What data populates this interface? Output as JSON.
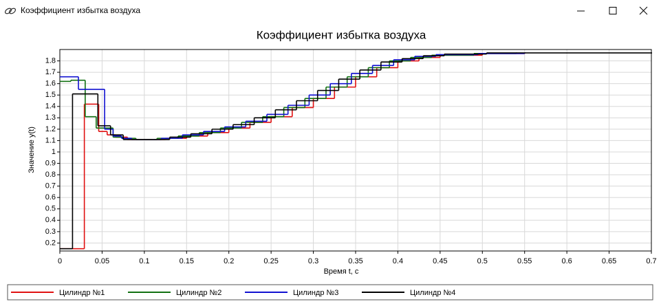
{
  "window": {
    "title": "Коэффициент избытка воздуха"
  },
  "chart_data": {
    "type": "step",
    "title": "Коэффициент избытка воздуха",
    "x_label": "Время t, с",
    "y_label": "Значение y(t)",
    "xlim": [
      0,
      0.7
    ],
    "xticks": [
      0,
      0.05,
      0.1,
      0.15,
      0.2,
      0.25,
      0.3,
      0.35,
      0.4,
      0.45,
      0.5,
      0.55,
      0.6,
      0.65,
      0.7
    ],
    "ylim": [
      0.13,
      1.9
    ],
    "yticks": [
      0.2,
      0.3,
      0.4,
      0.5,
      0.6,
      0.7,
      0.8,
      0.9,
      1,
      1.1,
      1.2,
      1.3,
      1.4,
      1.5,
      1.6,
      1.7,
      1.8
    ],
    "grid": true,
    "legend": "bottom",
    "series": [
      {
        "name": "Цилиндр №1",
        "color": "#e01010",
        "x": [
          0,
          0.029,
          0.046,
          0.056,
          0.066,
          0.08,
          0.1,
          0.125,
          0.15,
          0.175,
          0.2,
          0.225,
          0.25,
          0.275,
          0.3,
          0.325,
          0.35,
          0.375,
          0.4,
          0.425,
          0.45,
          0.5,
          0.55
        ],
        "values": [
          0.15,
          1.42,
          1.18,
          1.15,
          1.13,
          1.11,
          1.11,
          1.12,
          1.14,
          1.17,
          1.21,
          1.26,
          1.31,
          1.39,
          1.47,
          1.57,
          1.66,
          1.74,
          1.8,
          1.83,
          1.85,
          1.865,
          1.87
        ]
      },
      {
        "name": "Цилиндр №2",
        "color": "#107010",
        "x": [
          0,
          0.013,
          0.03,
          0.043,
          0.063,
          0.075,
          0.09,
          0.115,
          0.14,
          0.165,
          0.19,
          0.215,
          0.24,
          0.265,
          0.29,
          0.315,
          0.34,
          0.365,
          0.39,
          0.415,
          0.44,
          0.49,
          0.54
        ],
        "values": [
          1.62,
          1.63,
          1.31,
          1.21,
          1.13,
          1.12,
          1.11,
          1.12,
          1.14,
          1.17,
          1.21,
          1.26,
          1.31,
          1.39,
          1.47,
          1.57,
          1.66,
          1.74,
          1.8,
          1.83,
          1.85,
          1.865,
          1.87
        ]
      },
      {
        "name": "Цилиндр №3",
        "color": "#1010d0",
        "x": [
          0,
          0.022,
          0.053,
          0.063,
          0.073,
          0.085,
          0.105,
          0.12,
          0.145,
          0.17,
          0.195,
          0.22,
          0.245,
          0.27,
          0.295,
          0.32,
          0.345,
          0.37,
          0.395,
          0.42,
          0.445,
          0.495,
          0.55
        ],
        "values": [
          1.66,
          1.55,
          1.2,
          1.14,
          1.12,
          1.11,
          1.11,
          1.12,
          1.15,
          1.18,
          1.22,
          1.27,
          1.33,
          1.41,
          1.5,
          1.6,
          1.69,
          1.76,
          1.81,
          1.84,
          1.855,
          1.865,
          1.87
        ]
      },
      {
        "name": "Цилиндр №4",
        "color": "#000000",
        "x": [
          0,
          0.015,
          0.045,
          0.06,
          0.075,
          0.09,
          0.11,
          0.13,
          0.155,
          0.18,
          0.205,
          0.23,
          0.255,
          0.28,
          0.305,
          0.33,
          0.355,
          0.38,
          0.405,
          0.43,
          0.455,
          0.505,
          0.7
        ],
        "values": [
          0.15,
          1.51,
          1.23,
          1.15,
          1.11,
          1.11,
          1.11,
          1.13,
          1.16,
          1.2,
          1.24,
          1.3,
          1.37,
          1.45,
          1.54,
          1.64,
          1.72,
          1.79,
          1.82,
          1.845,
          1.86,
          1.87,
          1.87
        ]
      }
    ]
  }
}
